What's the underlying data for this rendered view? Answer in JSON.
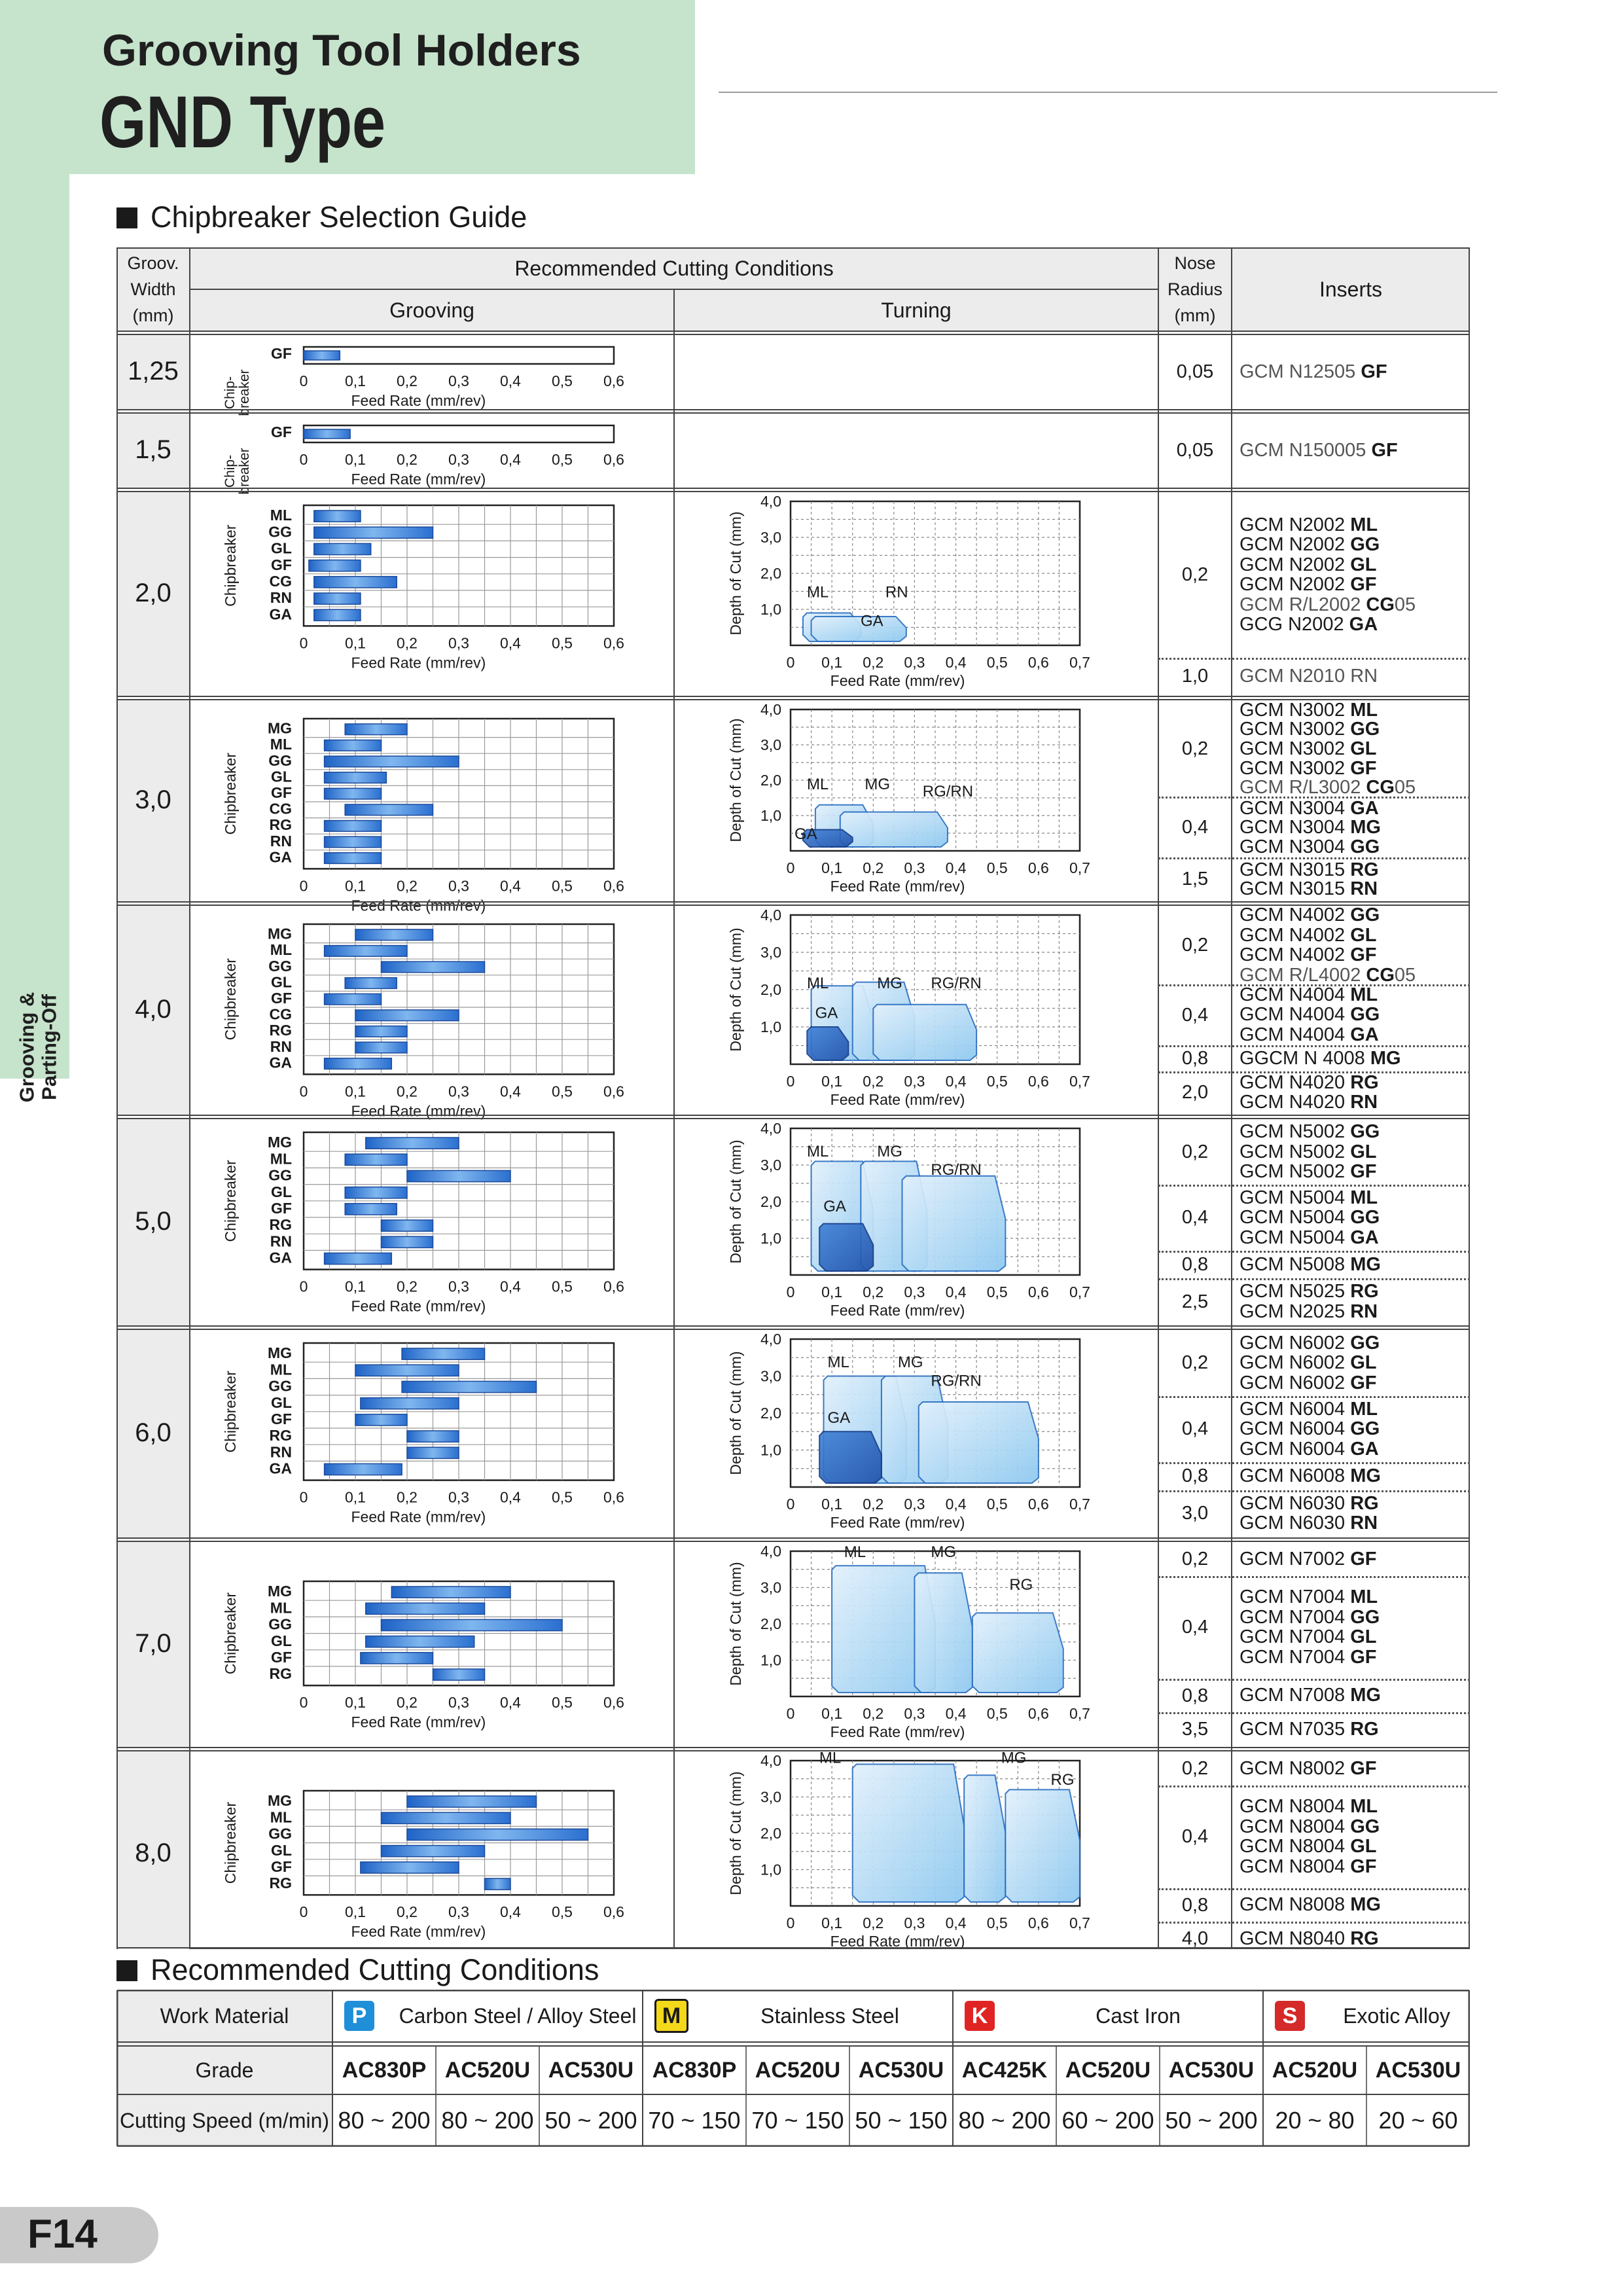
{
  "header": {
    "title1": "Grooving Tool Holders",
    "title2": "GND Type",
    "side_label_line1": "Grooving &",
    "side_label_line2": "Parting-Off",
    "accent_color": "#c6e3cc"
  },
  "section1": "Chipbreaker Selection Guide",
  "section2": "Recommended Cutting Conditions",
  "table": {
    "col_width_line1": "Groov.",
    "col_width_line2": "Width",
    "col_width_line3": "(mm)",
    "col_conditions": "Recommended Cutting Conditions",
    "col_grooving": "Grooving",
    "col_turning": "Turning",
    "col_nose_line1": "Nose",
    "col_nose_line2": "Radius",
    "col_nose_line3": "(mm)",
    "col_inserts": "Inserts"
  },
  "axis": {
    "feed_label": "Feed Rate (mm/rev)",
    "doc_label": "Depth of Cut (mm)",
    "chip_label": "Chipbreaker",
    "chip_label_short": "Chip-breaker",
    "feed_ticks": [
      "0",
      "0,1",
      "0,2",
      "0,3",
      "0,4",
      "0,5",
      "0,6"
    ],
    "turn_ticks": [
      "0",
      "0,1",
      "0,2",
      "0,3",
      "0,4",
      "0,5",
      "0,6",
      "0,7"
    ],
    "doc_ticks": [
      "1,0",
      "2,0",
      "3,0",
      "4,0"
    ]
  },
  "rows": [
    {
      "width": "1,25",
      "grooving": [
        {
          "name": "GF",
          "min": 0.0,
          "max": 0.07
        }
      ],
      "turning": null,
      "nose": [
        {
          "r": "0,05",
          "inserts": [
            [
              "GCM N12505 ",
              "GF"
            ]
          ]
        }
      ]
    },
    {
      "width": "1,5",
      "grooving": [
        {
          "name": "GF",
          "min": 0.0,
          "max": 0.09
        }
      ],
      "turning": null,
      "nose": [
        {
          "r": "0,05",
          "inserts": [
            [
              "GCM N150005 ",
              "GF"
            ]
          ]
        }
      ]
    },
    {
      "width": "2,0",
      "grooving": [
        {
          "name": "ML",
          "min": 0.02,
          "max": 0.11
        },
        {
          "name": "GG",
          "min": 0.02,
          "max": 0.25
        },
        {
          "name": "GL",
          "min": 0.02,
          "max": 0.13
        },
        {
          "name": "GF",
          "min": 0.01,
          "max": 0.11
        },
        {
          "name": "CG",
          "min": 0.02,
          "max": 0.18
        },
        {
          "name": "RN",
          "min": 0.02,
          "max": 0.11
        },
        {
          "name": "GA",
          "min": 0.02,
          "max": 0.11
        }
      ],
      "turning": {
        "labels": [
          [
            "ML",
            0.03,
            1.3
          ],
          [
            "RN",
            0.22,
            1.3
          ],
          [
            "GA",
            0.16,
            0.5
          ]
        ],
        "regions": [
          {
            "from": 0.03,
            "to": 0.17,
            "doc": 0.9
          },
          {
            "from": 0.05,
            "to": 0.28,
            "doc": 0.8
          }
        ]
      },
      "nose": [
        {
          "r": "0,2",
          "inserts": [
            [
              "GCM N2002 ",
              "ML"
            ],
            [
              "GCM N2002 ",
              "GG"
            ],
            [
              "GCM N2002 ",
              "GL"
            ],
            [
              "GCM N2002 ",
              "GF"
            ],
            [
              "GCM R/L2002 ",
              "CG",
              "05"
            ],
            [
              "GCG N2002 ",
              "GA"
            ]
          ]
        },
        {
          "r": "1,0",
          "inserts": [
            [
              "GCM N2010 ",
              "RN",
              "",
              "plain"
            ]
          ]
        }
      ]
    },
    {
      "width": "3,0",
      "grooving": [
        {
          "name": "MG",
          "min": 0.08,
          "max": 0.2
        },
        {
          "name": "ML",
          "min": 0.04,
          "max": 0.15
        },
        {
          "name": "GG",
          "min": 0.04,
          "max": 0.3
        },
        {
          "name": "GL",
          "min": 0.04,
          "max": 0.16
        },
        {
          "name": "GF",
          "min": 0.04,
          "max": 0.15
        },
        {
          "name": "CG",
          "min": 0.08,
          "max": 0.25
        },
        {
          "name": "RG",
          "min": 0.04,
          "max": 0.15
        },
        {
          "name": "RN",
          "min": 0.04,
          "max": 0.15
        },
        {
          "name": "GA",
          "min": 0.04,
          "max": 0.15
        }
      ],
      "turning": {
        "labels": [
          [
            "ML",
            0.03,
            1.7
          ],
          [
            "MG",
            0.17,
            1.7
          ],
          [
            "RG/RN",
            0.31,
            1.5
          ],
          [
            "GA",
            0.0,
            0.3
          ]
        ],
        "regions": [
          {
            "from": 0.06,
            "to": 0.2,
            "doc": 1.3
          },
          {
            "from": 0.12,
            "to": 0.38,
            "doc": 1.1
          },
          {
            "from": 0.03,
            "to": 0.15,
            "doc": 0.6
          }
        ]
      },
      "nose": [
        {
          "r": "0,2",
          "inserts": [
            [
              "GCM N3002 ",
              "ML"
            ],
            [
              "GCM N3002 ",
              "GG"
            ],
            [
              "GCM N3002 ",
              "GL"
            ],
            [
              "GCM N3002 ",
              "GF"
            ],
            [
              "GCM R/L3002 ",
              "CG",
              "05"
            ]
          ]
        },
        {
          "r": "0,4",
          "inserts": [
            [
              "GCM N3004 ",
              "GA"
            ],
            [
              "GCM N3004 ",
              "MG"
            ],
            [
              "GCM N3004 ",
              "GG"
            ]
          ]
        },
        {
          "r": "1,5",
          "inserts": [
            [
              "GCM N3015 ",
              "RG"
            ],
            [
              "GCM N3015 ",
              "RN"
            ]
          ]
        }
      ]
    },
    {
      "width": "4,0",
      "grooving": [
        {
          "name": "MG",
          "min": 0.1,
          "max": 0.25
        },
        {
          "name": "ML",
          "min": 0.04,
          "max": 0.2
        },
        {
          "name": "GG",
          "min": 0.15,
          "max": 0.35
        },
        {
          "name": "GL",
          "min": 0.08,
          "max": 0.18
        },
        {
          "name": "GF",
          "min": 0.04,
          "max": 0.15
        },
        {
          "name": "CG",
          "min": 0.1,
          "max": 0.3
        },
        {
          "name": "RG",
          "min": 0.1,
          "max": 0.2
        },
        {
          "name": "RN",
          "min": 0.1,
          "max": 0.2
        },
        {
          "name": "GA",
          "min": 0.04,
          "max": 0.17
        }
      ],
      "turning": {
        "labels": [
          [
            "ML",
            0.03,
            2.0
          ],
          [
            "MG",
            0.2,
            2.0
          ],
          [
            "RG/RN",
            0.33,
            2.0
          ],
          [
            "GA",
            0.05,
            1.2
          ]
        ],
        "regions": [
          {
            "from": 0.05,
            "to": 0.2,
            "doc": 2.1
          },
          {
            "from": 0.15,
            "to": 0.3,
            "doc": 2.2
          },
          {
            "from": 0.2,
            "to": 0.45,
            "doc": 1.6
          },
          {
            "from": 0.04,
            "to": 0.14,
            "doc": 1.0
          }
        ]
      },
      "nose": [
        {
          "r": "0,2",
          "inserts": [
            [
              "GCM N4002 ",
              "GG"
            ],
            [
              "GCM N4002 ",
              "GL"
            ],
            [
              "GCM N4002 ",
              "GF"
            ],
            [
              "GCM R/L4002 ",
              "CG",
              "05"
            ]
          ]
        },
        {
          "r": "0,4",
          "inserts": [
            [
              "GCM N4004 ",
              "ML"
            ],
            [
              "GCM N4004 ",
              "GG"
            ],
            [
              "GCM N4004 ",
              "GA"
            ]
          ]
        },
        {
          "r": "0,8",
          "inserts": [
            [
              "GGCM N 4008 ",
              "MG"
            ]
          ]
        },
        {
          "r": "2,0",
          "inserts": [
            [
              "GCM N4020 ",
              "RG"
            ],
            [
              "GCM N4020 ",
              "RN"
            ]
          ]
        }
      ]
    },
    {
      "width": "5,0",
      "grooving": [
        {
          "name": "MG",
          "min": 0.12,
          "max": 0.3
        },
        {
          "name": "ML",
          "min": 0.08,
          "max": 0.2
        },
        {
          "name": "GG",
          "min": 0.2,
          "max": 0.4
        },
        {
          "name": "GL",
          "min": 0.08,
          "max": 0.2
        },
        {
          "name": "GF",
          "min": 0.08,
          "max": 0.18
        },
        {
          "name": "RG",
          "min": 0.15,
          "max": 0.25
        },
        {
          "name": "RN",
          "min": 0.15,
          "max": 0.25
        },
        {
          "name": "GA",
          "min": 0.04,
          "max": 0.17
        }
      ],
      "turning": {
        "labels": [
          [
            "ML",
            0.03,
            3.2
          ],
          [
            "MG",
            0.2,
            3.2
          ],
          [
            "RG/RN",
            0.33,
            2.7
          ],
          [
            "GA",
            0.07,
            1.7
          ]
        ],
        "regions": [
          {
            "from": 0.05,
            "to": 0.2,
            "doc": 3.1
          },
          {
            "from": 0.17,
            "to": 0.33,
            "doc": 3.1
          },
          {
            "from": 0.27,
            "to": 0.52,
            "doc": 2.7
          },
          {
            "from": 0.07,
            "to": 0.2,
            "doc": 1.4
          }
        ]
      },
      "nose": [
        {
          "r": "0,2",
          "inserts": [
            [
              "GCM N5002 ",
              "GG"
            ],
            [
              "GCM N5002 ",
              "GL"
            ],
            [
              "GCM N5002 ",
              "GF"
            ]
          ]
        },
        {
          "r": "0,4",
          "inserts": [
            [
              "GCM N5004 ",
              "ML"
            ],
            [
              "GCM N5004 ",
              "GG"
            ],
            [
              "GCM N5004 ",
              "GA"
            ]
          ]
        },
        {
          "r": "0,8",
          "inserts": [
            [
              "GCM N5008 ",
              "MG"
            ]
          ]
        },
        {
          "r": "2,5",
          "inserts": [
            [
              "GCM N5025 ",
              "RG"
            ],
            [
              "GCM N2025 ",
              "RN"
            ]
          ]
        }
      ]
    },
    {
      "width": "6,0",
      "grooving": [
        {
          "name": "MG",
          "min": 0.19,
          "max": 0.35
        },
        {
          "name": "ML",
          "min": 0.1,
          "max": 0.3
        },
        {
          "name": "GG",
          "min": 0.19,
          "max": 0.45
        },
        {
          "name": "GL",
          "min": 0.11,
          "max": 0.3
        },
        {
          "name": "GF",
          "min": 0.1,
          "max": 0.2
        },
        {
          "name": "RG",
          "min": 0.2,
          "max": 0.3
        },
        {
          "name": "RN",
          "min": 0.2,
          "max": 0.3
        },
        {
          "name": "GA",
          "min": 0.04,
          "max": 0.19
        }
      ],
      "turning": {
        "labels": [
          [
            "ML",
            0.08,
            3.2
          ],
          [
            "MG",
            0.25,
            3.2
          ],
          [
            "RG/RN",
            0.33,
            2.7
          ],
          [
            "GA",
            0.08,
            1.7
          ]
        ],
        "regions": [
          {
            "from": 0.08,
            "to": 0.28,
            "doc": 3.0
          },
          {
            "from": 0.22,
            "to": 0.38,
            "doc": 3.0
          },
          {
            "from": 0.31,
            "to": 0.6,
            "doc": 2.3
          },
          {
            "from": 0.07,
            "to": 0.22,
            "doc": 1.5
          }
        ]
      },
      "nose": [
        {
          "r": "0,2",
          "inserts": [
            [
              "GCM N6002 ",
              "GG"
            ],
            [
              "GCM N6002 ",
              "GL"
            ],
            [
              "GCM N6002 ",
              "GF"
            ]
          ]
        },
        {
          "r": "0,4",
          "inserts": [
            [
              "GCM N6004 ",
              "ML"
            ],
            [
              "GCM N6004 ",
              "GG"
            ],
            [
              "GCM N6004 ",
              "GA"
            ]
          ]
        },
        {
          "r": "0,8",
          "inserts": [
            [
              "GCM N6008 ",
              "MG"
            ]
          ]
        },
        {
          "r": "3,0",
          "inserts": [
            [
              "GCM N6030 ",
              "RG"
            ],
            [
              "GCM N6030 ",
              "RN"
            ]
          ]
        }
      ]
    },
    {
      "width": "7,0",
      "grooving": [
        {
          "name": "MG",
          "min": 0.17,
          "max": 0.4
        },
        {
          "name": "ML",
          "min": 0.12,
          "max": 0.35
        },
        {
          "name": "GG",
          "min": 0.15,
          "max": 0.5
        },
        {
          "name": "GL",
          "min": 0.12,
          "max": 0.33
        },
        {
          "name": "GF",
          "min": 0.11,
          "max": 0.25
        },
        {
          "name": "RG",
          "min": 0.25,
          "max": 0.35
        }
      ],
      "turning": {
        "labels": [
          [
            "ML",
            0.12,
            3.8
          ],
          [
            "MG",
            0.33,
            3.8
          ],
          [
            "RG",
            0.52,
            2.9
          ]
        ],
        "regions": [
          {
            "from": 0.1,
            "to": 0.35,
            "doc": 3.6
          },
          {
            "from": 0.3,
            "to": 0.44,
            "doc": 3.4
          },
          {
            "from": 0.44,
            "to": 0.66,
            "doc": 2.3
          }
        ]
      },
      "nose": [
        {
          "r": "0,2",
          "inserts": [
            [
              "GCM N7002 ",
              "GF"
            ]
          ]
        },
        {
          "r": "0,4",
          "inserts": [
            [
              "GCM N7004 ",
              "ML"
            ],
            [
              "GCM N7004 ",
              "GG"
            ],
            [
              "GCM N7004 ",
              "GL"
            ],
            [
              "GCM N7004 ",
              "GF"
            ]
          ]
        },
        {
          "r": "0,8",
          "inserts": [
            [
              "GCM N7008 ",
              "MG"
            ]
          ]
        },
        {
          "r": "3,5",
          "inserts": [
            [
              "GCM N7035 ",
              "RG"
            ]
          ]
        }
      ]
    },
    {
      "width": "8,0",
      "grooving": [
        {
          "name": "MG",
          "min": 0.2,
          "max": 0.45
        },
        {
          "name": "ML",
          "min": 0.15,
          "max": 0.4
        },
        {
          "name": "GG",
          "min": 0.2,
          "max": 0.55
        },
        {
          "name": "GL",
          "min": 0.15,
          "max": 0.35
        },
        {
          "name": "GF",
          "min": 0.11,
          "max": 0.3
        },
        {
          "name": "RG",
          "min": 0.35,
          "max": 0.4
        }
      ],
      "turning": {
        "labels": [
          [
            "ML",
            0.06,
            3.9
          ],
          [
            "MG",
            0.5,
            3.9
          ],
          [
            "RG",
            0.62,
            3.3
          ]
        ],
        "regions": [
          {
            "from": 0.15,
            "to": 0.42,
            "doc": 3.9
          },
          {
            "from": 0.42,
            "to": 0.52,
            "doc": 3.6
          },
          {
            "from": 0.52,
            "to": 0.7,
            "doc": 3.2
          }
        ]
      },
      "nose": [
        {
          "r": "0,2",
          "inserts": [
            [
              "GCM N8002 ",
              "GF"
            ]
          ]
        },
        {
          "r": "0,4",
          "inserts": [
            [
              "GCM N8004 ",
              "ML"
            ],
            [
              "GCM N8004 ",
              "GG"
            ],
            [
              "GCM N8004 ",
              "GL"
            ],
            [
              "GCM N8004 ",
              "GF"
            ]
          ]
        },
        {
          "r": "0,8",
          "inserts": [
            [
              "GCM N8008 ",
              "MG"
            ]
          ]
        },
        {
          "r": "4,0",
          "inserts": [
            [
              "GCM N8040 ",
              "RG"
            ]
          ]
        }
      ]
    }
  ],
  "conditions": {
    "work_material": "Work Material",
    "grade": "Grade",
    "speed": "Cutting Speed (m/min)",
    "materials": [
      {
        "badge": "P",
        "color": "#1e8fd8",
        "text_color": "#ffffff",
        "name": "Carbon Steel / Alloy Steel",
        "cols": 3
      },
      {
        "badge": "M",
        "color": "#f4d81a",
        "text_color": "#1a1a1a",
        "name": "Stainless Steel",
        "cols": 3
      },
      {
        "badge": "K",
        "color": "#e02424",
        "text_color": "#ffffff",
        "name": "Cast Iron",
        "cols": 3
      },
      {
        "badge": "S",
        "color": "#d42a2a",
        "text_color": "#ffffff",
        "name": "Exotic Alloy",
        "cols": 2
      }
    ],
    "grades": [
      "AC830P",
      "AC520U",
      "AC530U",
      "AC830P",
      "AC520U",
      "AC530U",
      "AC425K",
      "AC520U",
      "AC530U",
      "AC520U",
      "AC530U"
    ],
    "speeds": [
      "80 ~ 200",
      "80 ~ 200",
      "50 ~ 200",
      "70 ~ 150",
      "70 ~ 150",
      "50 ~ 150",
      "80 ~ 200",
      "60 ~ 200",
      "50 ~ 200",
      "20 ~ 80",
      "20 ~ 60"
    ]
  },
  "page_number": "F14"
}
